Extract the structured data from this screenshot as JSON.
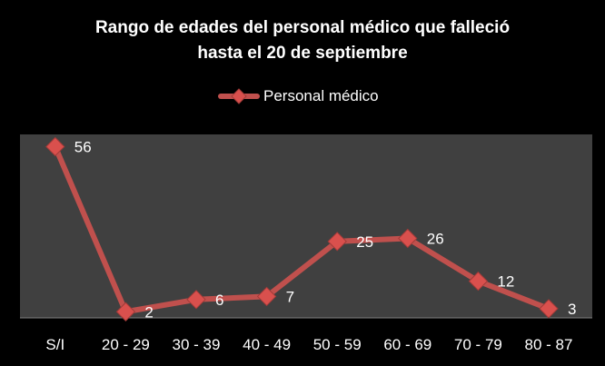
{
  "chart_data": {
    "type": "line",
    "title": [
      "Rango de edades del personal médico que falleció",
      "hasta el  20 de septiembre"
    ],
    "categories": [
      "S/I",
      "20 - 29",
      "30 - 39",
      "40 - 49",
      "50 - 59",
      "60 - 69",
      "70 - 79",
      "80 - 87"
    ],
    "series": [
      {
        "name": "Personal médico",
        "values": [
          56,
          2,
          6,
          7,
          25,
          26,
          12,
          3
        ],
        "color": "#c0504d"
      }
    ],
    "xlabel": "",
    "ylabel": "",
    "ylim": [
      0,
      60
    ],
    "grid": false,
    "legend": "top-center",
    "plot_background": "#404040",
    "background": "#000000"
  }
}
